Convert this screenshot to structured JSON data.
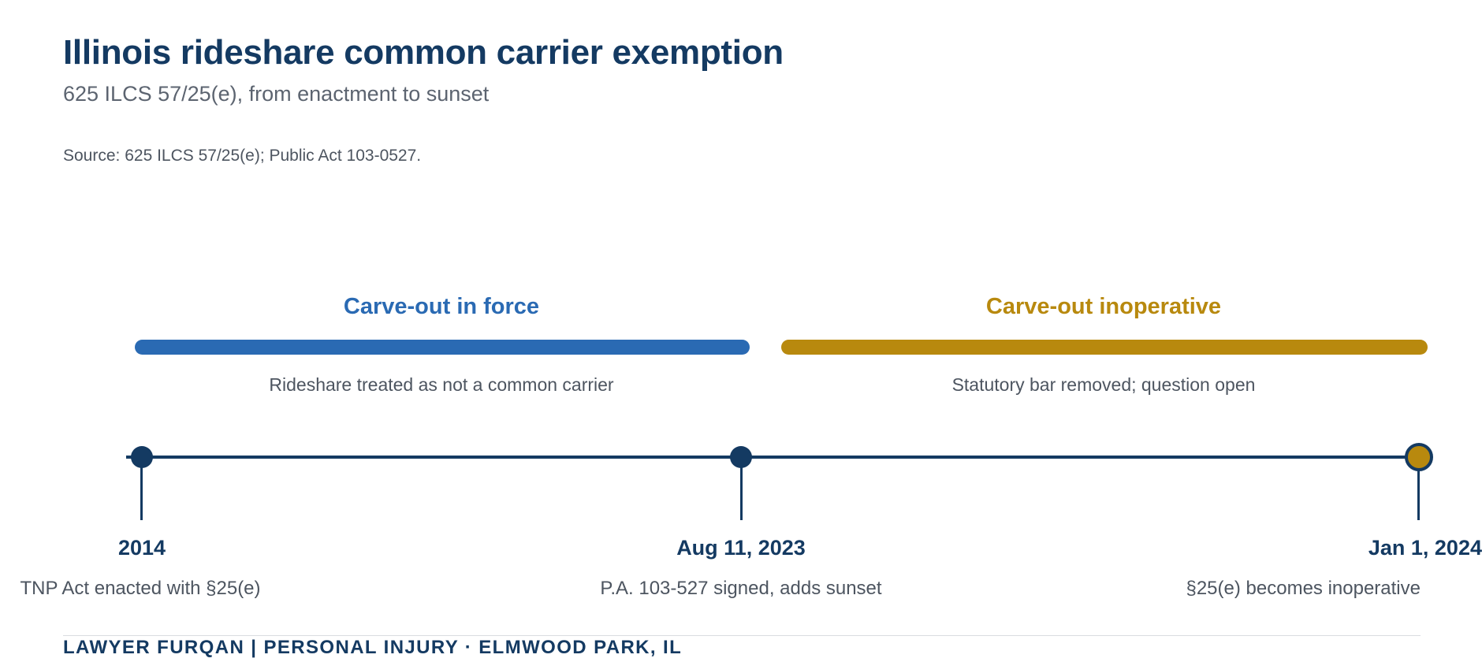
{
  "header": {
    "title": "Illinois rideshare common carrier exemption",
    "subtitle": "625 ILCS 57/25(e), from enactment to sunset",
    "source": "Source: 625 ILCS 57/25(e); Public Act 103-0527."
  },
  "colors": {
    "navy": "#143a62",
    "in_force": "#2a6ab3",
    "inoperative": "#b8890e",
    "muted_text": "#4d5560"
  },
  "phases": [
    {
      "label": "Carve-out in force",
      "description": "Rideshare treated as not a common carrier",
      "color": "#2a6ab3"
    },
    {
      "label": "Carve-out inoperative",
      "description": "Statutory bar removed; question open",
      "color": "#b8890e"
    }
  ],
  "milestones": [
    {
      "date": "2014",
      "event": "TNP Act enacted with §25(e)"
    },
    {
      "date": "Aug 11, 2023",
      "event": "P.A. 103-527 signed, adds sunset"
    },
    {
      "date": "Jan 1, 2024",
      "event": "§25(e) becomes inoperative"
    }
  ],
  "footer": {
    "text": "LAWYER FURQAN | PERSONAL INJURY · ELMWOOD PARK, IL"
  }
}
